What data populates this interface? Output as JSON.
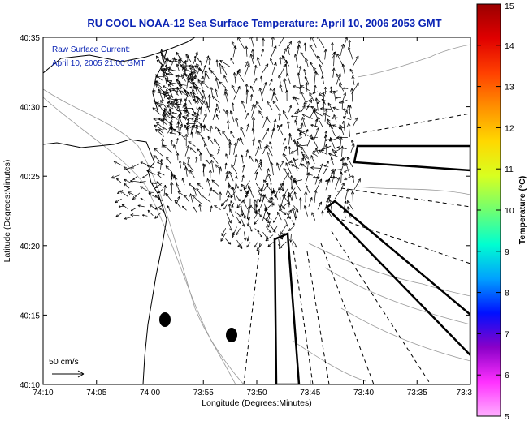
{
  "title": "RU COOL  NOAA-12  Sea Surface Temperature:  April 10, 2006 2053 GMT",
  "overlay": {
    "line1": "Raw Surface Current:",
    "line2": "April 10, 2005 21:00 GMT"
  },
  "scale": {
    "label": "50 cm/s"
  },
  "xaxis": {
    "label": "Longitude (Degrees:Minutes)",
    "ticks": [
      "74:10",
      "74:05",
      "74:00",
      "73:55",
      "73:50",
      "73:45",
      "73:40",
      "73:35",
      "73:3"
    ]
  },
  "yaxis": {
    "label": "Latitude (Degrees:Minutes)",
    "ticks": [
      "40:35",
      "40:30",
      "40:25",
      "40:20",
      "40:15",
      "40:10"
    ]
  },
  "colorbar": {
    "label": "Temperature (°C)",
    "ticks": [
      "15",
      "14",
      "13",
      "12",
      "11",
      "10",
      "9",
      "8",
      "7",
      "6",
      "5"
    ],
    "colors": [
      "#9a0000",
      "#e00000",
      "#ff4000",
      "#ff9000",
      "#ffd800",
      "#d8ff20",
      "#70ff70",
      "#00ffd0",
      "#00a0ff",
      "#0010ff",
      "#8a00c8",
      "#ff30ff",
      "#ffb0ff"
    ]
  }
}
